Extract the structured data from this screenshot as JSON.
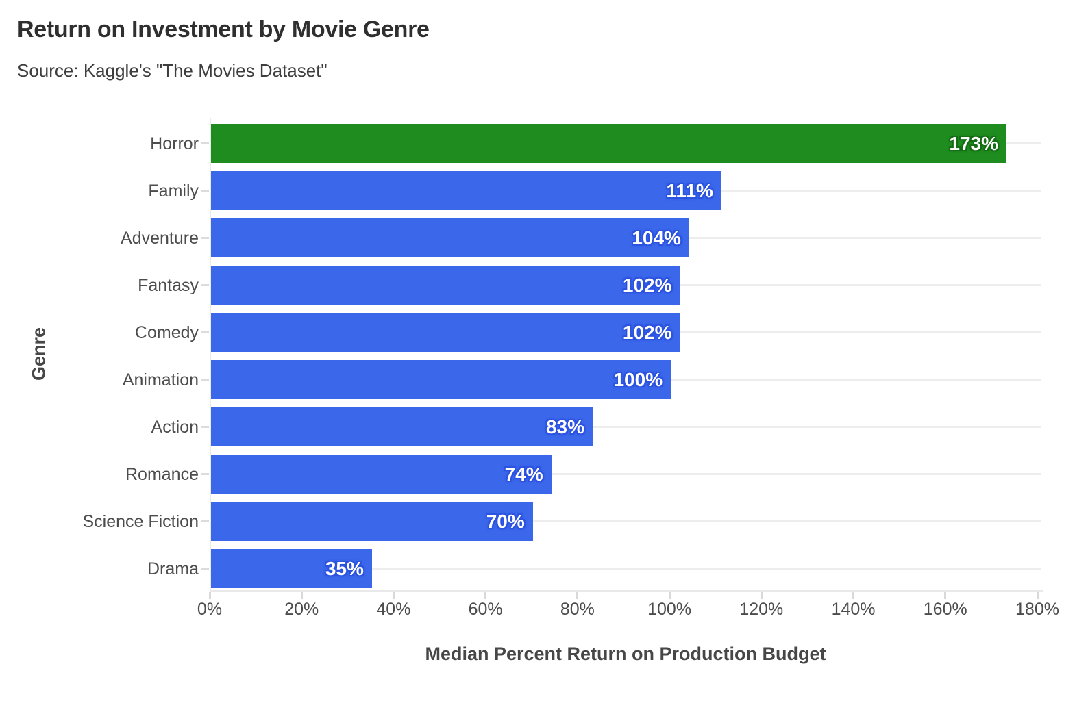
{
  "title": "Return on Investment by Movie Genre",
  "subtitle": "Source: Kaggle's \"The Movies Dataset\"",
  "chart_data": {
    "type": "bar",
    "orientation": "horizontal",
    "title": "Return on Investment by Movie Genre",
    "subtitle": "Source: Kaggle's \"The Movies Dataset\"",
    "categories": [
      "Horror",
      "Family",
      "Adventure",
      "Fantasy",
      "Comedy",
      "Animation",
      "Action",
      "Romance",
      "Science Fiction",
      "Drama"
    ],
    "values": [
      173,
      111,
      104,
      102,
      102,
      100,
      83,
      74,
      70,
      35
    ],
    "value_labels": [
      "173%",
      "111%",
      "104%",
      "102%",
      "102%",
      "100%",
      "83%",
      "74%",
      "70%",
      "35%"
    ],
    "bar_colors": [
      "#1f8c1f",
      "#3b67ea",
      "#3b67ea",
      "#3b67ea",
      "#3b67ea",
      "#3b67ea",
      "#3b67ea",
      "#3b67ea",
      "#3b67ea",
      "#3b67ea"
    ],
    "halo_colors": [
      "#166e16",
      "#2d54e0",
      "#2d54e0",
      "#2d54e0",
      "#2d54e0",
      "#2d54e0",
      "#2d54e0",
      "#2d54e0",
      "#2d54e0",
      "#2d54e0"
    ],
    "highlight_index": 0,
    "xlabel": "Median Percent Return on Production Budget",
    "ylabel": "Genre",
    "x_tick_labels": [
      "0%",
      "20%",
      "40%",
      "60%",
      "80%",
      "100%",
      "120%",
      "140%",
      "160%",
      "180%"
    ],
    "x_tick_values": [
      0,
      20,
      40,
      60,
      80,
      100,
      120,
      140,
      160,
      180
    ],
    "xlim": [
      0,
      180
    ],
    "grid": "horizontal-category-lines",
    "legend": "none",
    "colors": {
      "highlight_bar": "#1f8c1f",
      "default_bar": "#3b67ea",
      "value_text": "#ffffff",
      "gridline": "#ededed",
      "axis_line": "#e9e9e9",
      "tick_mark": "#d9d9d9",
      "tick_label": "#4c4c4c",
      "title_text": "#2f2f2f",
      "subtitle_text": "#3d3d3d",
      "axis_title_text": "#474747",
      "background": "#ffffff"
    }
  }
}
